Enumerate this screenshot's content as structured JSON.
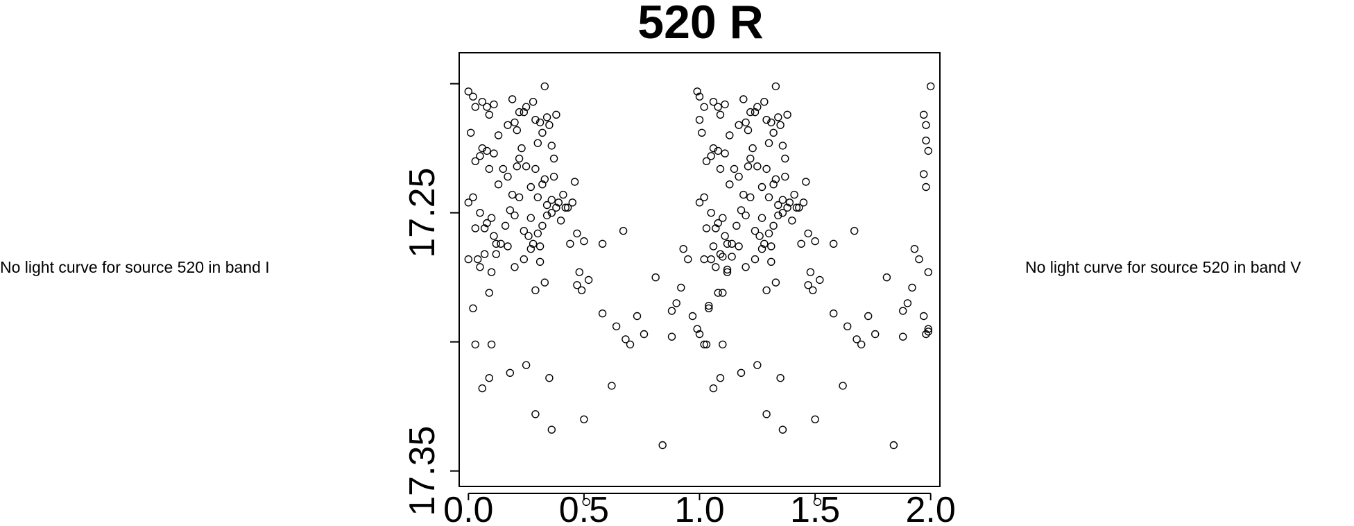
{
  "notes": {
    "left": "No light curve for source 520 in band I",
    "right": "No light curve for source 520 in band V"
  },
  "chart_data": {
    "type": "scatter",
    "title": "520 R",
    "xlabel": "",
    "ylabel": "",
    "xlim": [
      -0.04,
      2.04
    ],
    "ylim": [
      17.356,
      17.188
    ],
    "y_inverted": true,
    "x_ticks": [
      0.0,
      0.5,
      1.0,
      1.5,
      2.0
    ],
    "x_tick_labels": [
      "0.0",
      "0.5",
      "1.0",
      "1.5",
      "2.0"
    ],
    "y_ticks": [
      17.2,
      17.25,
      17.3,
      17.35
    ],
    "y_tick_labels": [
      "",
      "17.25",
      "",
      "17.35"
    ],
    "series": [
      {
        "marker": "open-circle",
        "points": [
          [
            0.0,
            17.203
          ],
          [
            0.02,
            17.205
          ],
          [
            0.03,
            17.209
          ],
          [
            0.06,
            17.207
          ],
          [
            0.08,
            17.209
          ],
          [
            0.09,
            17.212
          ],
          [
            0.11,
            17.208
          ],
          [
            0.13,
            17.22
          ],
          [
            0.17,
            17.216
          ],
          [
            0.19,
            17.206
          ],
          [
            0.2,
            17.215
          ],
          [
            0.21,
            17.218
          ],
          [
            0.22,
            17.211
          ],
          [
            0.24,
            17.211
          ],
          [
            0.25,
            17.209
          ],
          [
            0.28,
            17.207
          ],
          [
            0.29,
            17.214
          ],
          [
            0.3,
            17.223
          ],
          [
            0.31,
            17.215
          ],
          [
            0.32,
            17.219
          ],
          [
            0.33,
            17.201
          ],
          [
            0.34,
            17.213
          ],
          [
            0.35,
            17.216
          ],
          [
            0.36,
            17.224
          ],
          [
            0.37,
            17.229
          ],
          [
            0.38,
            17.212
          ],
          [
            0.01,
            17.219
          ],
          [
            0.03,
            17.23
          ],
          [
            0.05,
            17.228
          ],
          [
            0.06,
            17.225
          ],
          [
            0.08,
            17.226
          ],
          [
            0.09,
            17.233
          ],
          [
            0.11,
            17.227
          ],
          [
            0.13,
            17.239
          ],
          [
            0.15,
            17.233
          ],
          [
            0.17,
            17.236
          ],
          [
            0.19,
            17.243
          ],
          [
            0.21,
            17.232
          ],
          [
            0.22,
            17.229
          ],
          [
            0.23,
            17.225
          ],
          [
            0.25,
            17.232
          ],
          [
            0.27,
            17.24
          ],
          [
            0.29,
            17.233
          ],
          [
            0.3,
            17.244
          ],
          [
            0.32,
            17.239
          ],
          [
            0.33,
            17.237
          ],
          [
            0.34,
            17.247
          ],
          [
            0.36,
            17.245
          ],
          [
            0.37,
            17.236
          ],
          [
            0.39,
            17.246
          ],
          [
            0.41,
            17.243
          ],
          [
            0.43,
            17.248
          ],
          [
            0.45,
            17.246
          ],
          [
            0.46,
            17.238
          ],
          [
            0.0,
            17.246
          ],
          [
            0.02,
            17.244
          ],
          [
            0.03,
            17.256
          ],
          [
            0.05,
            17.25
          ],
          [
            0.07,
            17.256
          ],
          [
            0.08,
            17.254
          ],
          [
            0.1,
            17.252
          ],
          [
            0.11,
            17.259
          ],
          [
            0.12,
            17.262
          ],
          [
            0.14,
            17.262
          ],
          [
            0.16,
            17.255
          ],
          [
            0.18,
            17.249
          ],
          [
            0.2,
            17.251
          ],
          [
            0.22,
            17.244
          ],
          [
            0.24,
            17.257
          ],
          [
            0.26,
            17.259
          ],
          [
            0.27,
            17.252
          ],
          [
            0.28,
            17.262
          ],
          [
            0.3,
            17.258
          ],
          [
            0.31,
            17.263
          ],
          [
            0.32,
            17.255
          ],
          [
            0.34,
            17.251
          ],
          [
            0.36,
            17.25
          ],
          [
            0.38,
            17.248
          ],
          [
            0.4,
            17.253
          ],
          [
            0.42,
            17.248
          ],
          [
            0.0,
            17.268
          ],
          [
            0.02,
            17.287
          ],
          [
            0.04,
            17.268
          ],
          [
            0.05,
            17.271
          ],
          [
            0.07,
            17.266
          ],
          [
            0.09,
            17.281
          ],
          [
            0.1,
            17.273
          ],
          [
            0.12,
            17.266
          ],
          [
            0.17,
            17.263
          ],
          [
            0.2,
            17.271
          ],
          [
            0.24,
            17.268
          ],
          [
            0.27,
            17.264
          ],
          [
            0.29,
            17.28
          ],
          [
            0.31,
            17.269
          ],
          [
            0.33,
            17.277
          ],
          [
            0.03,
            17.301
          ],
          [
            0.06,
            17.318
          ],
          [
            0.09,
            17.314
          ],
          [
            0.1,
            17.301
          ],
          [
            0.18,
            17.312
          ],
          [
            0.25,
            17.309
          ],
          [
            0.29,
            17.328
          ],
          [
            0.35,
            17.314
          ],
          [
            0.36,
            17.334
          ],
          [
            0.44,
            17.262
          ],
          [
            0.47,
            17.258
          ],
          [
            0.48,
            17.273
          ],
          [
            0.5,
            17.261
          ],
          [
            0.47,
            17.278
          ],
          [
            0.49,
            17.28
          ],
          [
            0.52,
            17.276
          ],
          [
            0.5,
            17.33
          ],
          [
            0.51,
            17.362
          ],
          [
            0.58,
            17.289
          ],
          [
            0.58,
            17.262
          ],
          [
            0.62,
            17.317
          ],
          [
            0.64,
            17.294
          ],
          [
            0.67,
            17.257
          ],
          [
            0.68,
            17.299
          ],
          [
            0.7,
            17.301
          ],
          [
            0.73,
            17.29
          ],
          [
            0.76,
            17.297
          ],
          [
            0.84,
            17.34
          ],
          [
            0.81,
            17.275
          ],
          [
            0.88,
            17.288
          ],
          [
            0.9,
            17.285
          ],
          [
            0.88,
            17.298
          ],
          [
            0.92,
            17.279
          ],
          [
            0.93,
            17.264
          ],
          [
            0.95,
            17.268
          ],
          [
            0.97,
            17.29
          ],
          [
            1.0,
            17.297
          ],
          [
            0.99,
            17.295
          ],
          [
            1.02,
            17.301
          ],
          [
            1.04,
            17.286
          ],
          [
            1.06,
            17.263
          ],
          [
            1.08,
            17.281
          ],
          [
            1.1,
            17.267
          ],
          [
            1.12,
            17.272
          ],
          [
            1.14,
            17.267
          ],
          [
            0.99,
            17.203
          ],
          [
            1.0,
            17.205
          ],
          [
            1.02,
            17.209
          ],
          [
            1.06,
            17.207
          ],
          [
            1.08,
            17.209
          ],
          [
            1.09,
            17.212
          ],
          [
            1.11,
            17.208
          ],
          [
            1.13,
            17.22
          ],
          [
            1.17,
            17.216
          ],
          [
            1.19,
            17.206
          ],
          [
            1.2,
            17.215
          ],
          [
            1.21,
            17.218
          ],
          [
            1.22,
            17.211
          ],
          [
            1.24,
            17.211
          ],
          [
            1.25,
            17.209
          ],
          [
            1.28,
            17.207
          ],
          [
            1.29,
            17.214
          ],
          [
            1.3,
            17.223
          ],
          [
            1.31,
            17.215
          ],
          [
            1.32,
            17.219
          ],
          [
            1.33,
            17.201
          ],
          [
            1.34,
            17.213
          ],
          [
            1.35,
            17.216
          ],
          [
            1.36,
            17.224
          ],
          [
            1.37,
            17.229
          ],
          [
            1.38,
            17.212
          ],
          [
            1.0,
            17.214
          ],
          [
            1.01,
            17.219
          ],
          [
            1.03,
            17.23
          ],
          [
            1.05,
            17.228
          ],
          [
            1.06,
            17.225
          ],
          [
            1.08,
            17.226
          ],
          [
            1.09,
            17.233
          ],
          [
            1.11,
            17.227
          ],
          [
            1.13,
            17.239
          ],
          [
            1.15,
            17.233
          ],
          [
            1.17,
            17.236
          ],
          [
            1.19,
            17.243
          ],
          [
            1.21,
            17.232
          ],
          [
            1.22,
            17.229
          ],
          [
            1.23,
            17.225
          ],
          [
            1.25,
            17.232
          ],
          [
            1.27,
            17.24
          ],
          [
            1.29,
            17.233
          ],
          [
            1.3,
            17.244
          ],
          [
            1.32,
            17.239
          ],
          [
            1.33,
            17.237
          ],
          [
            1.34,
            17.247
          ],
          [
            1.36,
            17.245
          ],
          [
            1.37,
            17.236
          ],
          [
            1.39,
            17.246
          ],
          [
            1.41,
            17.243
          ],
          [
            1.43,
            17.248
          ],
          [
            1.45,
            17.246
          ],
          [
            1.46,
            17.238
          ],
          [
            1.0,
            17.246
          ],
          [
            1.02,
            17.244
          ],
          [
            1.03,
            17.256
          ],
          [
            1.05,
            17.25
          ],
          [
            1.07,
            17.256
          ],
          [
            1.08,
            17.254
          ],
          [
            1.1,
            17.252
          ],
          [
            1.11,
            17.259
          ],
          [
            1.12,
            17.262
          ],
          [
            1.14,
            17.262
          ],
          [
            1.16,
            17.255
          ],
          [
            1.18,
            17.249
          ],
          [
            1.2,
            17.251
          ],
          [
            1.22,
            17.244
          ],
          [
            1.24,
            17.257
          ],
          [
            1.26,
            17.259
          ],
          [
            1.27,
            17.252
          ],
          [
            1.28,
            17.262
          ],
          [
            1.3,
            17.258
          ],
          [
            1.31,
            17.263
          ],
          [
            1.32,
            17.255
          ],
          [
            1.34,
            17.251
          ],
          [
            1.36,
            17.25
          ],
          [
            1.38,
            17.248
          ],
          [
            1.4,
            17.253
          ],
          [
            1.42,
            17.248
          ],
          [
            1.02,
            17.268
          ],
          [
            1.04,
            17.287
          ],
          [
            1.05,
            17.268
          ],
          [
            1.07,
            17.271
          ],
          [
            1.09,
            17.266
          ],
          [
            1.1,
            17.281
          ],
          [
            1.12,
            17.273
          ],
          [
            1.17,
            17.263
          ],
          [
            1.2,
            17.271
          ],
          [
            1.24,
            17.268
          ],
          [
            1.27,
            17.264
          ],
          [
            1.29,
            17.28
          ],
          [
            1.31,
            17.269
          ],
          [
            1.33,
            17.277
          ],
          [
            1.03,
            17.301
          ],
          [
            1.06,
            17.318
          ],
          [
            1.09,
            17.314
          ],
          [
            1.1,
            17.301
          ],
          [
            1.18,
            17.312
          ],
          [
            1.25,
            17.309
          ],
          [
            1.29,
            17.328
          ],
          [
            1.35,
            17.314
          ],
          [
            1.36,
            17.334
          ],
          [
            1.44,
            17.262
          ],
          [
            1.47,
            17.258
          ],
          [
            1.48,
            17.273
          ],
          [
            1.5,
            17.261
          ],
          [
            1.47,
            17.278
          ],
          [
            1.49,
            17.28
          ],
          [
            1.52,
            17.276
          ],
          [
            1.5,
            17.33
          ],
          [
            1.51,
            17.362
          ],
          [
            1.58,
            17.289
          ],
          [
            1.58,
            17.262
          ],
          [
            1.62,
            17.317
          ],
          [
            1.64,
            17.294
          ],
          [
            1.67,
            17.257
          ],
          [
            1.68,
            17.299
          ],
          [
            1.7,
            17.301
          ],
          [
            1.73,
            17.29
          ],
          [
            1.76,
            17.297
          ],
          [
            1.84,
            17.34
          ],
          [
            1.81,
            17.275
          ],
          [
            1.88,
            17.288
          ],
          [
            1.9,
            17.285
          ],
          [
            1.88,
            17.298
          ],
          [
            1.92,
            17.279
          ],
          [
            1.93,
            17.264
          ],
          [
            1.95,
            17.268
          ],
          [
            1.97,
            17.29
          ],
          [
            1.98,
            17.297
          ],
          [
            1.99,
            17.295
          ],
          [
            2.0,
            17.201
          ],
          [
            1.97,
            17.212
          ],
          [
            1.98,
            17.216
          ],
          [
            1.98,
            17.222
          ],
          [
            1.99,
            17.226
          ],
          [
            1.97,
            17.235
          ],
          [
            1.98,
            17.24
          ],
          [
            1.99,
            17.273
          ],
          [
            1.99,
            17.296
          ]
        ]
      }
    ]
  }
}
